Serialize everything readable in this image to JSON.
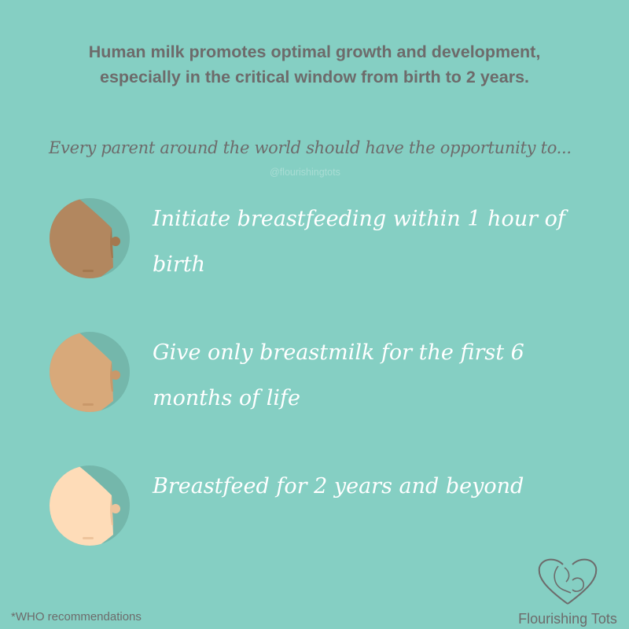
{
  "headline": {
    "line1": "Human milk promotes optimal growth and development,",
    "line2": "especially in the critical window from birth to 2 years."
  },
  "intro": "Every parent around the world should have the opportunity to...",
  "handle": "@flourishingtots",
  "items": [
    {
      "text": "Initiate breastfeeding within 1 hour of birth",
      "skin": "#b2875f",
      "shade": "#a4784f"
    },
    {
      "text": "Give only breastmilk for the first 6 months of life",
      "skin": "#d8a97a",
      "shade": "#c9986a"
    },
    {
      "text": "Breastfeed for 2 years and beyond",
      "skin": "#fedcb8",
      "shade": "#eec49c"
    }
  ],
  "colors": {
    "background": "#85cfc3",
    "circle": "#74b7ab",
    "text": "#6d6b6b"
  },
  "footnote": "*WHO recommendations",
  "logo": {
    "name": "Flourishing Tots",
    "icon": "heart-mother-baby-icon"
  }
}
